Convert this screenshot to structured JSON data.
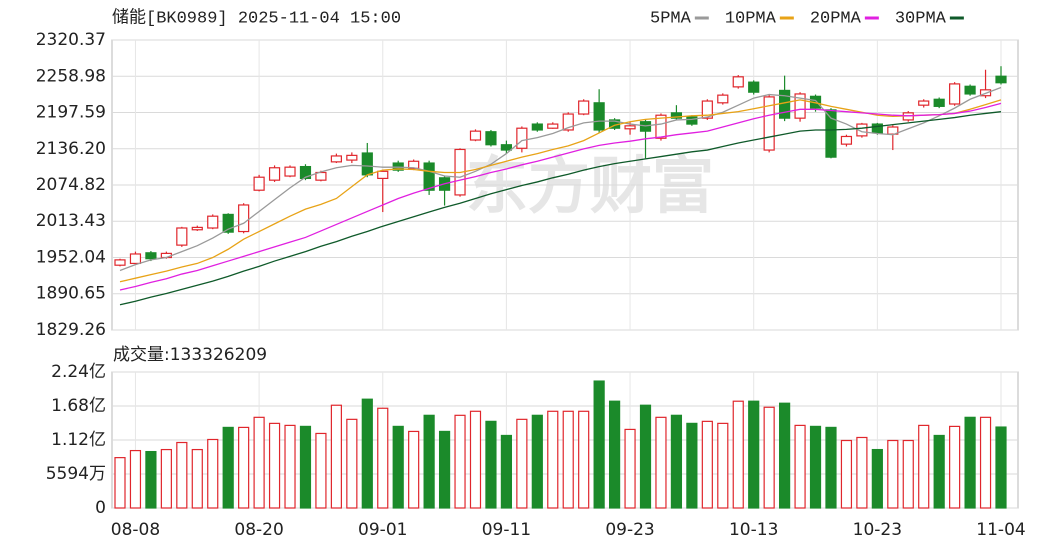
{
  "chart_data": [
    {
      "type": "candlestick",
      "title": "储能[BK0989] 2025-11-04 15:00",
      "watermark": "东方财富",
      "categories": [
        null,
        "08-08",
        null,
        null,
        null,
        null,
        null,
        null,
        null,
        "08-20",
        null,
        null,
        null,
        null,
        null,
        null,
        null,
        "09-01",
        null,
        null,
        null,
        null,
        null,
        null,
        null,
        "09-11",
        null,
        null,
        null,
        null,
        null,
        null,
        null,
        "09-23",
        null,
        null,
        null,
        null,
        null,
        null,
        null,
        "10-13",
        null,
        null,
        null,
        null,
        null,
        null,
        null,
        "10-23",
        null,
        null,
        null,
        null,
        null,
        null,
        null,
        "11-04"
      ],
      "open": [
        1939,
        1942,
        1960,
        1952,
        1973,
        1999,
        2002,
        2025,
        1996,
        2066,
        2083,
        2090,
        2106,
        2083,
        2114,
        2117,
        2129,
        2086,
        2112,
        2103,
        2112,
        2087,
        2058,
        2151,
        2165,
        2143,
        2137,
        2178,
        2171,
        2168,
        2195,
        2214,
        2185,
        2170,
        2182,
        2154,
        2197,
        2190,
        2188,
        2214,
        2241,
        2249,
        2134,
        2235,
        2188,
        2225,
        2202,
        2144,
        2158,
        2178,
        2161,
        2185,
        2210,
        2220,
        2212,
        2242,
        2226,
        2259
      ],
      "high": [
        1950,
        1962,
        1963,
        1962,
        2004,
        2006,
        2025,
        2027,
        2044,
        2092,
        2108,
        2108,
        2110,
        2099,
        2128,
        2130,
        2146,
        2101,
        2116,
        2118,
        2116,
        2090,
        2137,
        2169,
        2168,
        2150,
        2174,
        2181,
        2181,
        2198,
        2220,
        2237,
        2188,
        2181,
        2186,
        2196,
        2210,
        2193,
        2220,
        2230,
        2261,
        2252,
        2229,
        2260,
        2232,
        2228,
        2205,
        2160,
        2180,
        2180,
        2176,
        2200,
        2220,
        2223,
        2249,
        2245,
        2270,
        2276
      ],
      "low": [
        1937,
        1940,
        1946,
        1950,
        1970,
        1997,
        2000,
        1992,
        1993,
        2064,
        2080,
        2088,
        2083,
        2081,
        2112,
        2112,
        2088,
        2029,
        2097,
        2100,
        2058,
        2040,
        2055,
        2149,
        2140,
        2128,
        2130,
        2165,
        2170,
        2165,
        2193,
        2163,
        2168,
        2160,
        2120,
        2150,
        2185,
        2175,
        2185,
        2211,
        2238,
        2228,
        2130,
        2183,
        2182,
        2199,
        2120,
        2140,
        2155,
        2160,
        2134,
        2182,
        2206,
        2205,
        2209,
        2226,
        2222,
        2245
      ],
      "close": [
        1948,
        1958,
        1950,
        1959,
        2002,
        2003,
        2022,
        1995,
        2041,
        2088,
        2104,
        2105,
        2086,
        2096,
        2124,
        2125,
        2092,
        2098,
        2100,
        2115,
        2066,
        2066,
        2135,
        2166,
        2143,
        2134,
        2171,
        2168,
        2178,
        2195,
        2217,
        2168,
        2171,
        2175,
        2166,
        2193,
        2188,
        2178,
        2217,
        2227,
        2258,
        2232,
        2224,
        2188,
        2229,
        2205,
        2122,
        2157,
        2178,
        2163,
        2173,
        2197,
        2217,
        2208,
        2246,
        2229,
        2236,
        2248
      ],
      "up_color": "#e0262c",
      "down_color": "#1b8a2a",
      "series": [
        {
          "name": "5PMA",
          "color": "#9a9a9a",
          "values": [
            1930,
            1940,
            1948,
            1952,
            1962,
            1972,
            1985,
            2000,
            2010,
            2030,
            2050,
            2070,
            2088,
            2097,
            2104,
            2108,
            2107,
            2105,
            2105,
            2104,
            2098,
            2090,
            2088,
            2098,
            2110,
            2128,
            2150,
            2155,
            2162,
            2172,
            2180,
            2183,
            2183,
            2178,
            2175,
            2178,
            2185,
            2186,
            2190,
            2198,
            2210,
            2222,
            2228,
            2226,
            2222,
            2218,
            2188,
            2178,
            2165,
            2162,
            2160,
            2170,
            2180,
            2192,
            2205,
            2220,
            2230,
            2240
          ]
        },
        {
          "name": "10PMA",
          "color": "#e8a317",
          "values": [
            1911,
            1917,
            1923,
            1929,
            1936,
            1942,
            1952,
            1966,
            1983,
            1996,
            2009,
            2022,
            2034,
            2042,
            2052,
            2072,
            2092,
            2100,
            2102,
            2101,
            2098,
            2096,
            2096,
            2101,
            2108,
            2115,
            2122,
            2128,
            2135,
            2141,
            2150,
            2163,
            2176,
            2182,
            2186,
            2188,
            2190,
            2192,
            2193,
            2196,
            2199,
            2204,
            2209,
            2214,
            2219,
            2214,
            2208,
            2203,
            2198,
            2193,
            2191,
            2192,
            2193,
            2194,
            2196,
            2203,
            2211,
            2219
          ]
        },
        {
          "name": "20PMA",
          "color": "#e020e0",
          "values": [
            1897,
            1903,
            1910,
            1916,
            1924,
            1930,
            1938,
            1946,
            1954,
            1962,
            1970,
            1978,
            1986,
            1997,
            2008,
            2019,
            2030,
            2041,
            2052,
            2061,
            2069,
            2077,
            2083,
            2089,
            2096,
            2102,
            2109,
            2115,
            2122,
            2129,
            2136,
            2142,
            2146,
            2149,
            2153,
            2156,
            2160,
            2163,
            2166,
            2173,
            2180,
            2187,
            2193,
            2198,
            2203,
            2203,
            2201,
            2199,
            2197,
            2195,
            2193,
            2192,
            2193,
            2194,
            2196,
            2200,
            2206,
            2213
          ]
        },
        {
          "name": "30PMA",
          "color": "#0f5a2a",
          "values": [
            1872,
            1878,
            1885,
            1891,
            1898,
            1905,
            1912,
            1920,
            1929,
            1937,
            1946,
            1954,
            1962,
            1971,
            1979,
            1988,
            1996,
            2005,
            2013,
            2021,
            2029,
            2037,
            2044,
            2052,
            2060,
            2067,
            2074,
            2080,
            2087,
            2093,
            2100,
            2106,
            2111,
            2115,
            2119,
            2123,
            2127,
            2131,
            2134,
            2140,
            2146,
            2151,
            2156,
            2161,
            2166,
            2168,
            2168,
            2169,
            2171,
            2174,
            2177,
            2180,
            2183,
            2186,
            2189,
            2193,
            2196,
            2199
          ]
        }
      ],
      "ylim": [
        1829.26,
        2320.37
      ],
      "yticks": [
        2320.37,
        2258.98,
        2197.59,
        {
          "value": 2136.2,
          "label": "2136.20"
        },
        2074.82,
        2013.43,
        1952.04,
        1890.65,
        1829.26
      ],
      "grid": true,
      "legend": "top-right"
    },
    {
      "type": "bar",
      "title": "成交量:133326209",
      "values": [
        82960000,
        94580000,
        92920000,
        96240000,
        107860000,
        96240000,
        112830000,
        132740000,
        132740000,
        149340000,
        139380000,
        136060000,
        134400000,
        122790000,
        169250000,
        146020000,
        179200000,
        164270000,
        134400000,
        126110000,
        152650000,
        126110000,
        152650000,
        159290000,
        142700000,
        119470000,
        146020000,
        152650000,
        159290000,
        159290000,
        159290000,
        209070000,
        175890000,
        129430000,
        169250000,
        149340000,
        152650000,
        139380000,
        142700000,
        139380000,
        175890000,
        175890000,
        165930000,
        172570000,
        136060000,
        134400000,
        132740000,
        111170000,
        116150000,
        96240000,
        111170000,
        111170000,
        136060000,
        119470000,
        134400000,
        149340000,
        149340000,
        133326209
      ],
      "ylim": [
        0,
        224000000
      ],
      "yticks": [
        {
          "value": 224000000,
          "label": "2.24亿"
        },
        {
          "value": 168000000,
          "label": "1.68亿"
        },
        {
          "value": 112000000,
          "label": "1.12亿"
        },
        {
          "value": 55940000,
          "label": "5594万"
        },
        0
      ],
      "grid": true
    }
  ]
}
